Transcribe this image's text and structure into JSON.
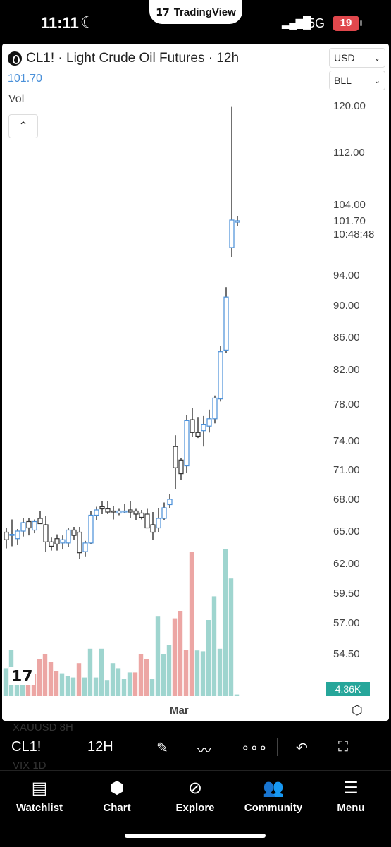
{
  "status_bar": {
    "time": "11:11",
    "app_name": "TradingView",
    "network": "5G",
    "battery": "19"
  },
  "chart_header": {
    "ticker_title": "CL1! · Light Crude Oil Futures · 12h",
    "last_price": "101.70",
    "volume_label": "Vol",
    "collapse_icon": "chevron-up-icon",
    "currency": "USD",
    "unit": "BLL"
  },
  "price_axis": {
    "ticks": [
      "120.00",
      "112.00",
      "104.00",
      "94.00",
      "90.00",
      "86.00",
      "82.00",
      "78.00",
      "74.00",
      "71.00",
      "68.00",
      "65.00",
      "62.00",
      "59.50",
      "57.00",
      "54.50"
    ],
    "last_price_label": "101.70",
    "countdown_label": "10:48:48",
    "volume_badge": "4.36K"
  },
  "time_axis": {
    "label": "Mar"
  },
  "chart_data": {
    "type": "candlestick",
    "title": "CL1! · Light Crude Oil Futures · 12h",
    "y_axis_ticks": [
      120.0,
      112.0,
      104.0,
      94.0,
      90.0,
      86.0,
      82.0,
      78.0,
      74.0,
      71.0,
      68.0,
      65.0,
      62.0,
      59.5,
      57.0,
      54.5
    ],
    "candles": [
      {
        "o": 64.9,
        "h": 65.3,
        "l": 63.4,
        "c": 64.2
      },
      {
        "o": 64.6,
        "h": 66.1,
        "l": 63.6,
        "c": 64.7
      },
      {
        "o": 64.3,
        "h": 65.2,
        "l": 63.7,
        "c": 65.0
      },
      {
        "o": 65.0,
        "h": 66.2,
        "l": 64.5,
        "c": 65.8
      },
      {
        "o": 65.9,
        "h": 66.2,
        "l": 64.6,
        "c": 65.3
      },
      {
        "o": 65.1,
        "h": 66.1,
        "l": 64.8,
        "c": 65.9
      },
      {
        "o": 66.2,
        "h": 66.9,
        "l": 65.7,
        "c": 65.7
      },
      {
        "o": 65.6,
        "h": 66.4,
        "l": 63.1,
        "c": 64.0
      },
      {
        "o": 64.0,
        "h": 64.4,
        "l": 63.2,
        "c": 63.6
      },
      {
        "o": 64.3,
        "h": 64.7,
        "l": 63.2,
        "c": 63.8
      },
      {
        "o": 63.9,
        "h": 64.6,
        "l": 63.3,
        "c": 64.2
      },
      {
        "o": 63.9,
        "h": 65.3,
        "l": 63.5,
        "c": 65.1
      },
      {
        "o": 65.1,
        "h": 65.4,
        "l": 64.2,
        "c": 64.6
      },
      {
        "o": 64.9,
        "h": 65.4,
        "l": 62.4,
        "c": 63.0
      },
      {
        "o": 63.1,
        "h": 64.1,
        "l": 62.6,
        "c": 63.9
      },
      {
        "o": 63.9,
        "h": 66.9,
        "l": 63.8,
        "c": 66.5
      },
      {
        "o": 66.5,
        "h": 67.3,
        "l": 66.0,
        "c": 67.0
      },
      {
        "o": 67.3,
        "h": 67.8,
        "l": 66.6,
        "c": 67.1
      },
      {
        "o": 67.1,
        "h": 67.8,
        "l": 66.6,
        "c": 66.8
      },
      {
        "o": 66.9,
        "h": 67.4,
        "l": 66.1,
        "c": 66.8
      },
      {
        "o": 66.7,
        "h": 67.1,
        "l": 66.5,
        "c": 66.9
      },
      {
        "o": 66.8,
        "h": 67.6,
        "l": 66.7,
        "c": 66.9
      },
      {
        "o": 67.0,
        "h": 67.8,
        "l": 66.2,
        "c": 66.8
      },
      {
        "o": 66.9,
        "h": 67.1,
        "l": 66.0,
        "c": 66.6
      },
      {
        "o": 66.7,
        "h": 67.0,
        "l": 66.1,
        "c": 66.3
      },
      {
        "o": 66.6,
        "h": 67.1,
        "l": 65.7,
        "c": 65.3
      },
      {
        "o": 65.6,
        "h": 66.8,
        "l": 64.2,
        "c": 64.9
      },
      {
        "o": 65.3,
        "h": 67.2,
        "l": 64.9,
        "c": 66.2
      },
      {
        "o": 66.2,
        "h": 67.7,
        "l": 66.0,
        "c": 67.2
      },
      {
        "o": 67.5,
        "h": 68.5,
        "l": 67.2,
        "c": 68.0
      },
      {
        "o": 73.4,
        "h": 74.6,
        "l": 69.0,
        "c": 71.2
      },
      {
        "o": 72.0,
        "h": 72.2,
        "l": 70.0,
        "c": 70.6
      },
      {
        "o": 71.4,
        "h": 76.8,
        "l": 70.7,
        "c": 76.2
      },
      {
        "o": 76.3,
        "h": 77.6,
        "l": 74.4,
        "c": 74.9
      },
      {
        "o": 74.9,
        "h": 76.6,
        "l": 74.3,
        "c": 74.5
      },
      {
        "o": 75.1,
        "h": 76.7,
        "l": 73.4,
        "c": 75.8
      },
      {
        "o": 75.6,
        "h": 77.4,
        "l": 74.9,
        "c": 76.4
      },
      {
        "o": 76.4,
        "h": 79.0,
        "l": 75.9,
        "c": 78.7
      },
      {
        "o": 78.6,
        "h": 84.9,
        "l": 78.3,
        "c": 84.2
      },
      {
        "o": 84.4,
        "h": 92.4,
        "l": 84.0,
        "c": 91.1
      },
      {
        "o": 97.9,
        "h": 119.8,
        "l": 96.5,
        "c": 101.8
      },
      {
        "o": 101.5,
        "h": 102.4,
        "l": 100.9,
        "c": 101.7
      }
    ],
    "volume": [
      {
        "v": 0.33,
        "dir": "up"
      },
      {
        "v": 0.55,
        "dir": "up"
      },
      {
        "v": 0.3,
        "dir": "up"
      },
      {
        "v": 0.33,
        "dir": "up"
      },
      {
        "v": 0.28,
        "dir": "down"
      },
      {
        "v": 0.26,
        "dir": "down"
      },
      {
        "v": 0.44,
        "dir": "down"
      },
      {
        "v": 0.5,
        "dir": "down"
      },
      {
        "v": 0.4,
        "dir": "down"
      },
      {
        "v": 0.3,
        "dir": "down"
      },
      {
        "v": 0.27,
        "dir": "up"
      },
      {
        "v": 0.24,
        "dir": "up"
      },
      {
        "v": 0.22,
        "dir": "up"
      },
      {
        "v": 0.39,
        "dir": "down"
      },
      {
        "v": 0.22,
        "dir": "up"
      },
      {
        "v": 0.56,
        "dir": "up"
      },
      {
        "v": 0.22,
        "dir": "up"
      },
      {
        "v": 0.56,
        "dir": "up"
      },
      {
        "v": 0.19,
        "dir": "up"
      },
      {
        "v": 0.39,
        "dir": "up"
      },
      {
        "v": 0.33,
        "dir": "up"
      },
      {
        "v": 0.2,
        "dir": "up"
      },
      {
        "v": 0.28,
        "dir": "up"
      },
      {
        "v": 0.28,
        "dir": "down"
      },
      {
        "v": 0.5,
        "dir": "down"
      },
      {
        "v": 0.44,
        "dir": "down"
      },
      {
        "v": 0.2,
        "dir": "up"
      },
      {
        "v": 0.94,
        "dir": "up"
      },
      {
        "v": 0.5,
        "dir": "up"
      },
      {
        "v": 0.6,
        "dir": "up"
      },
      {
        "v": 0.92,
        "dir": "down"
      },
      {
        "v": 1.0,
        "dir": "down"
      },
      {
        "v": 0.55,
        "dir": "down"
      },
      {
        "v": 1.7,
        "dir": "down"
      },
      {
        "v": 0.54,
        "dir": "up"
      },
      {
        "v": 0.53,
        "dir": "up"
      },
      {
        "v": 0.9,
        "dir": "up"
      },
      {
        "v": 1.18,
        "dir": "up"
      },
      {
        "v": 0.56,
        "dir": "up"
      },
      {
        "v": 1.74,
        "dir": "up"
      },
      {
        "v": 1.39,
        "dir": "up"
      },
      {
        "v": 0.02,
        "dir": "up"
      }
    ],
    "volume_badge": "4.36K",
    "x_axis_label": "Mar"
  },
  "watchlist_ghost": {
    "row1": "XAUUSD   8H",
    "row2": "VIX   1D"
  },
  "toolbar": {
    "symbol": "CL1!",
    "interval": "12H",
    "draw_icon": "pen-icon",
    "indicators_icon": "chart-lines-icon",
    "more_icon": "more-dots-icon",
    "undo_icon": "undo-icon",
    "fullscreen_icon": "fullscreen-icon"
  },
  "bottom_nav": {
    "items": [
      {
        "label": "Watchlist",
        "icon": "watchlist-icon"
      },
      {
        "label": "Chart",
        "icon": "chart-icon"
      },
      {
        "label": "Explore",
        "icon": "compass-icon"
      },
      {
        "label": "Community",
        "icon": "community-icon"
      },
      {
        "label": "Menu",
        "icon": "menu-icon"
      }
    ]
  },
  "colors": {
    "up_candle_border": "#4a90d9",
    "down_candle_border": "#333333",
    "volume_up": "#9fd5cf",
    "volume_down": "#eca6a4",
    "volume_badge": "#26a69a"
  }
}
